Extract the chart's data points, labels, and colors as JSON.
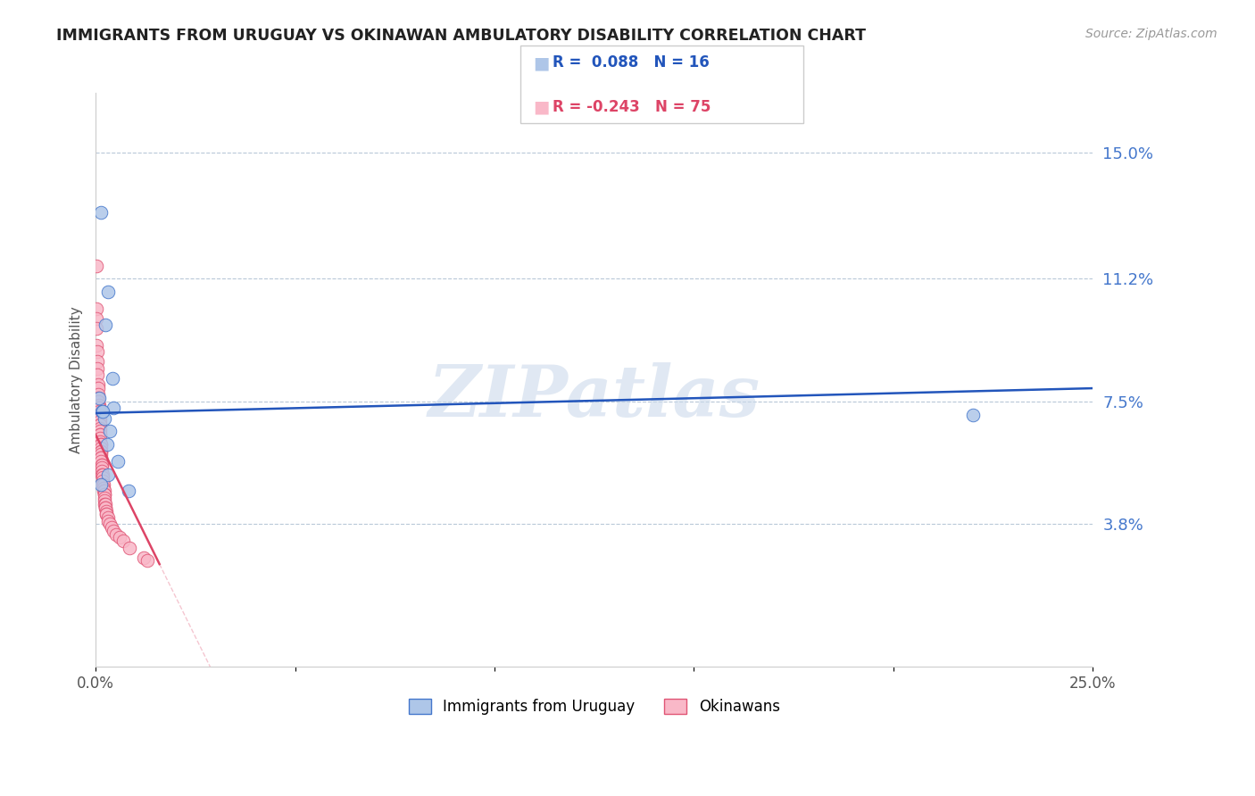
{
  "title": "IMMIGRANTS FROM URUGUAY VS OKINAWAN AMBULATORY DISABILITY CORRELATION CHART",
  "source": "Source: ZipAtlas.com",
  "ylabel": "Ambulatory Disability",
  "ytick_labels": [
    "15.0%",
    "11.2%",
    "7.5%",
    "3.8%"
  ],
  "ytick_values": [
    0.15,
    0.112,
    0.075,
    0.038
  ],
  "xmin": 0.0,
  "xmax": 0.25,
  "ymin": -0.005,
  "ymax": 0.168,
  "watermark": "ZIPatlas",
  "blue_color": "#aec6e8",
  "pink_color": "#f9b8c8",
  "blue_edge_color": "#4477cc",
  "pink_edge_color": "#e05575",
  "blue_line_color": "#2255bb",
  "pink_line_color": "#dd4466",
  "blue_line": {
    "x0": 0.0,
    "x1": 0.25,
    "y0": 0.0715,
    "y1": 0.079
  },
  "pink_line": {
    "x0": 0.0,
    "x1": 0.016,
    "y0": 0.065,
    "y1": 0.026
  },
  "blue_scatter": [
    [
      0.0013,
      0.132
    ],
    [
      0.003,
      0.108
    ],
    [
      0.0025,
      0.098
    ],
    [
      0.0042,
      0.082
    ],
    [
      0.0008,
      0.076
    ],
    [
      0.0045,
      0.073
    ],
    [
      0.0015,
      0.072
    ],
    [
      0.0022,
      0.07
    ],
    [
      0.0035,
      0.066
    ],
    [
      0.0028,
      0.062
    ],
    [
      0.0055,
      0.057
    ],
    [
      0.0032,
      0.053
    ],
    [
      0.0012,
      0.05
    ],
    [
      0.0082,
      0.048
    ],
    [
      0.0018,
      0.072
    ],
    [
      0.22,
      0.071
    ]
  ],
  "pink_scatter": [
    [
      0.0002,
      0.116
    ],
    [
      0.0001,
      0.103
    ],
    [
      0.0002,
      0.1
    ],
    [
      0.0001,
      0.097
    ],
    [
      0.0003,
      0.092
    ],
    [
      0.0004,
      0.09
    ],
    [
      0.0004,
      0.087
    ],
    [
      0.0005,
      0.085
    ],
    [
      0.0005,
      0.083
    ],
    [
      0.0006,
      0.08
    ],
    [
      0.0006,
      0.079
    ],
    [
      0.0006,
      0.077
    ],
    [
      0.0007,
      0.076
    ],
    [
      0.0007,
      0.075
    ],
    [
      0.0008,
      0.074
    ],
    [
      0.0008,
      0.073
    ],
    [
      0.0008,
      0.073
    ],
    [
      0.0008,
      0.072
    ],
    [
      0.0009,
      0.071
    ],
    [
      0.0009,
      0.071
    ],
    [
      0.0009,
      0.07
    ],
    [
      0.001,
      0.07
    ],
    [
      0.001,
      0.069
    ],
    [
      0.001,
      0.068
    ],
    [
      0.001,
      0.068
    ],
    [
      0.001,
      0.067
    ],
    [
      0.001,
      0.066
    ],
    [
      0.001,
      0.065
    ],
    [
      0.0011,
      0.065
    ],
    [
      0.0011,
      0.064
    ],
    [
      0.0011,
      0.063
    ],
    [
      0.0012,
      0.062
    ],
    [
      0.0012,
      0.062
    ],
    [
      0.0012,
      0.061
    ],
    [
      0.0013,
      0.06
    ],
    [
      0.0013,
      0.06
    ],
    [
      0.0013,
      0.059
    ],
    [
      0.0013,
      0.058
    ],
    [
      0.0014,
      0.058
    ],
    [
      0.0014,
      0.057
    ],
    [
      0.0015,
      0.056
    ],
    [
      0.0015,
      0.056
    ],
    [
      0.0015,
      0.055
    ],
    [
      0.0016,
      0.054
    ],
    [
      0.0016,
      0.053
    ],
    [
      0.0017,
      0.053
    ],
    [
      0.0017,
      0.052
    ],
    [
      0.0018,
      0.051
    ],
    [
      0.0018,
      0.05
    ],
    [
      0.0019,
      0.05
    ],
    [
      0.002,
      0.049
    ],
    [
      0.002,
      0.048
    ],
    [
      0.0021,
      0.048
    ],
    [
      0.0021,
      0.047
    ],
    [
      0.0022,
      0.047
    ],
    [
      0.0022,
      0.046
    ],
    [
      0.0023,
      0.045
    ],
    [
      0.0023,
      0.044
    ],
    [
      0.0024,
      0.044
    ],
    [
      0.0025,
      0.043
    ],
    [
      0.0025,
      0.043
    ],
    [
      0.0026,
      0.042
    ],
    [
      0.0027,
      0.041
    ],
    [
      0.0027,
      0.041
    ],
    [
      0.003,
      0.04
    ],
    [
      0.003,
      0.039
    ],
    [
      0.0035,
      0.038
    ],
    [
      0.004,
      0.037
    ],
    [
      0.0045,
      0.036
    ],
    [
      0.005,
      0.035
    ],
    [
      0.006,
      0.034
    ],
    [
      0.007,
      0.033
    ],
    [
      0.0085,
      0.031
    ],
    [
      0.012,
      0.028
    ],
    [
      0.013,
      0.027
    ]
  ]
}
